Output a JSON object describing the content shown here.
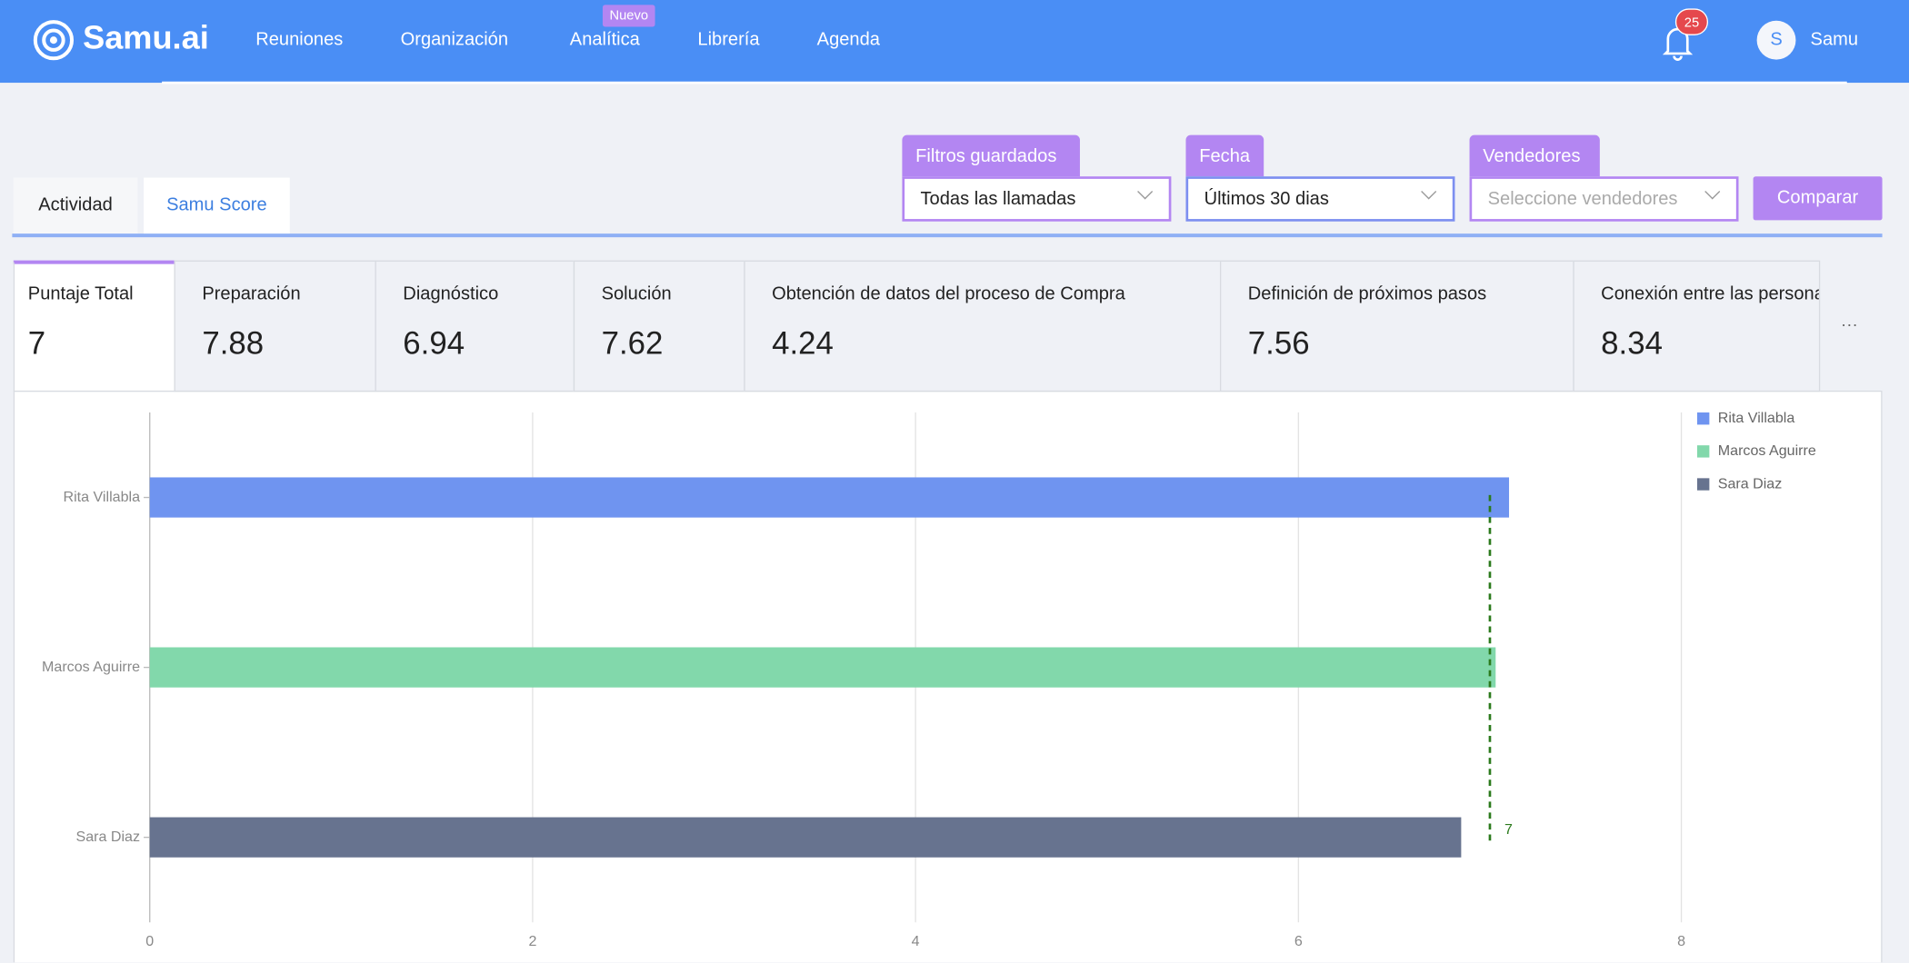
{
  "header": {
    "logo": "Samu.ai",
    "nav": [
      "Reuniones",
      "Organización",
      "Analítica",
      "Librería",
      "Agenda"
    ],
    "badge": "Nuevo",
    "notifications": 25,
    "avatar": "S",
    "user": "Samu"
  },
  "filters": [
    {
      "label": "Filtros guardados",
      "value": "Todas las llamadas"
    },
    {
      "label": "Fecha",
      "value": "Últimos 30 dias"
    },
    {
      "label": "Vendedores",
      "placeholder": "Seleccione vendedores"
    }
  ],
  "compare": "Comparar",
  "tabs": [
    "Actividad",
    "Samu Score"
  ],
  "scores": [
    {
      "label": "Puntaje Total",
      "value": 7
    },
    {
      "label": "Preparación",
      "value": 7.88
    },
    {
      "label": "Diagnóstico",
      "value": 6.94
    },
    {
      "label": "Solución",
      "value": 7.62
    },
    {
      "label": "Obtención de datos del proceso de Compra",
      "value": 4.24
    },
    {
      "label": "Definición de próximos pasos",
      "value": 7.56
    },
    {
      "label": "Conexión entre las personas",
      "value": 8.34
    }
  ],
  "more": "···",
  "chart_data": {
    "type": "bar",
    "orientation": "horizontal",
    "categories": [
      "Rita Villabla",
      "Marcos Aguirre",
      "Sara Diaz"
    ],
    "values": [
      7.1,
      7.03,
      6.85
    ],
    "colors": [
      "#6f94f0",
      "#82d8ab",
      "#67738f"
    ],
    "xlim": [
      0,
      8
    ],
    "xticks": [
      0,
      2,
      4,
      6,
      8
    ],
    "grid": true,
    "legend": "top-right",
    "reference_line": 7,
    "reference_color": "#2b7a1c"
  }
}
